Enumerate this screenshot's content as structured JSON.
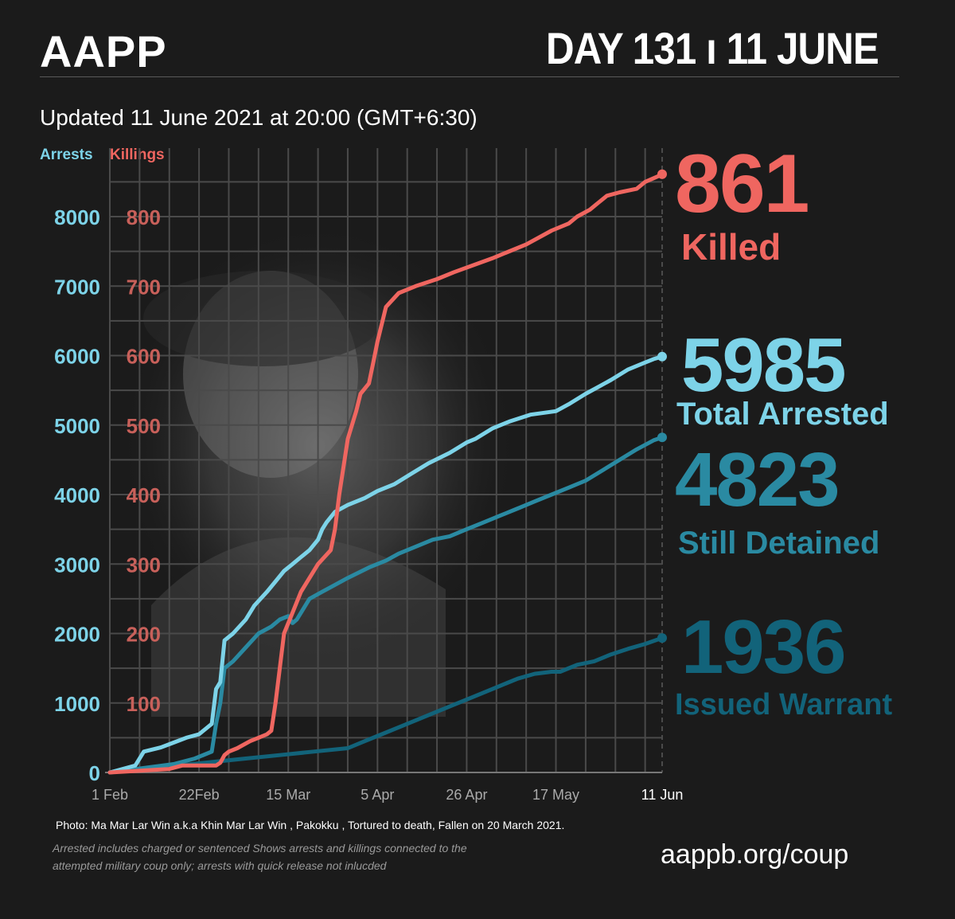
{
  "header": {
    "brand": "AAPP",
    "day_title": "DAY 131 ı 11 JUNE",
    "updated": "Updated 11 June 2021 at 20:00 (GMT+6:30)"
  },
  "legend": {
    "arrests": "Arrests",
    "killings": "Killings"
  },
  "stats": {
    "killed_num": "861",
    "killed_label": "Killed",
    "arrested_num": "5985",
    "arrested_label": "Total Arrested",
    "detained_num": "4823",
    "detained_label": "Still Detained",
    "warrant_num": "1936",
    "warrant_label": "Issued Warrant"
  },
  "footer": {
    "photo_caption": "Photo: Ma Mar Lar Win a.k.a Khin Mar Lar Win  , Pakokku , Tortured to death, Fallen on 20 March 2021.",
    "note": "Arrested includes charged or sentenced Shows arrests and killings connected to the attempted military coup only; arrests with quick release not inlucded",
    "url": "aappb.org/coup"
  },
  "colors": {
    "killings": "#ef6660",
    "arrested": "#7dd3e8",
    "detained": "#2a8aa2",
    "warrant": "#12637a",
    "background": "#1b1b1b",
    "grid": "#4a4a4a"
  },
  "chart_data": {
    "type": "line",
    "x_axis": {
      "unit": "days since 1 Feb",
      "range": [
        0,
        130
      ],
      "ticks": [
        {
          "day": 0,
          "label": "1 Feb"
        },
        {
          "day": 21,
          "label": "22Feb"
        },
        {
          "day": 42,
          "label": "15 Mar"
        },
        {
          "day": 63,
          "label": "5 Apr"
        },
        {
          "day": 84,
          "label": "26 Apr"
        },
        {
          "day": 105,
          "label": "17 May"
        },
        {
          "day": 130,
          "label": "11 Jun"
        }
      ]
    },
    "y_left": {
      "label": "Arrests",
      "range": [
        0,
        8000
      ],
      "ticks": [
        0,
        1000,
        2000,
        3000,
        4000,
        5000,
        6000,
        7000,
        8000
      ]
    },
    "y_right": {
      "label": "Killings",
      "range": [
        0,
        800
      ],
      "ticks": [
        100,
        200,
        300,
        400,
        500,
        600,
        700,
        800
      ]
    },
    "grid": true,
    "series": [
      {
        "name": "Killings",
        "axis": "killings",
        "x": [
          0,
          14,
          17,
          21,
          25,
          26,
          27,
          28,
          30,
          33,
          35,
          37,
          38,
          39,
          41,
          43,
          45,
          49,
          52,
          53,
          54,
          56,
          58,
          59,
          61,
          62,
          63,
          65,
          68,
          72,
          77,
          81,
          90,
          98,
          104,
          108,
          110,
          113,
          115,
          117,
          120,
          124,
          126,
          129,
          130
        ],
        "y": [
          0,
          5,
          10,
          10,
          10,
          14,
          25,
          30,
          35,
          45,
          50,
          55,
          60,
          100,
          200,
          230,
          260,
          300,
          320,
          350,
          400,
          480,
          520,
          545,
          560,
          590,
          620,
          670,
          690,
          700,
          710,
          720,
          740,
          760,
          780,
          790,
          800,
          810,
          820,
          830,
          835,
          840,
          850,
          858,
          861
        ]
      },
      {
        "name": "Total Arrested",
        "axis": "arrests",
        "x": [
          0,
          3,
          6,
          8,
          12,
          15,
          18,
          21,
          24,
          25,
          26,
          27,
          29,
          32,
          34,
          37,
          39,
          41,
          43,
          45,
          47,
          49,
          50,
          51,
          53,
          56,
          60,
          63,
          67,
          71,
          75,
          80,
          84,
          86,
          90,
          94,
          99,
          105,
          108,
          112,
          115,
          118,
          122,
          126,
          128,
          130
        ],
        "y": [
          0,
          50,
          100,
          300,
          360,
          430,
          500,
          550,
          700,
          1200,
          1300,
          1900,
          2000,
          2200,
          2400,
          2600,
          2750,
          2900,
          3000,
          3100,
          3200,
          3350,
          3500,
          3600,
          3750,
          3850,
          3950,
          4050,
          4150,
          4300,
          4450,
          4600,
          4750,
          4800,
          4950,
          5050,
          5150,
          5200,
          5300,
          5450,
          5550,
          5650,
          5800,
          5900,
          5950,
          5985
        ]
      },
      {
        "name": "Still Detained",
        "axis": "arrests",
        "x": [
          0,
          5,
          10,
          15,
          20,
          24,
          25,
          26,
          27,
          29,
          32,
          35,
          38,
          40,
          42,
          43,
          44,
          47,
          50,
          53,
          56,
          61,
          65,
          68,
          72,
          76,
          80,
          84,
          88,
          92,
          96,
          100,
          104,
          108,
          112,
          116,
          120,
          124,
          128,
          130
        ],
        "y": [
          0,
          40,
          80,
          120,
          200,
          300,
          700,
          1000,
          1500,
          1600,
          1800,
          2000,
          2100,
          2200,
          2250,
          2150,
          2200,
          2500,
          2600,
          2700,
          2800,
          2950,
          3050,
          3150,
          3250,
          3350,
          3400,
          3500,
          3600,
          3700,
          3800,
          3900,
          4000,
          4100,
          4200,
          4350,
          4500,
          4650,
          4780,
          4823
        ]
      },
      {
        "name": "Issued Warrant",
        "axis": "arrests",
        "x": [
          0,
          8,
          16,
          24,
          32,
          40,
          48,
          56,
          60,
          64,
          68,
          72,
          76,
          80,
          84,
          88,
          92,
          96,
          100,
          104,
          106,
          110,
          114,
          118,
          122,
          126,
          130
        ],
        "y": [
          0,
          50,
          100,
          150,
          200,
          250,
          300,
          350,
          450,
          550,
          650,
          750,
          850,
          950,
          1050,
          1150,
          1250,
          1350,
          1420,
          1450,
          1450,
          1550,
          1600,
          1700,
          1780,
          1850,
          1936
        ]
      }
    ]
  }
}
